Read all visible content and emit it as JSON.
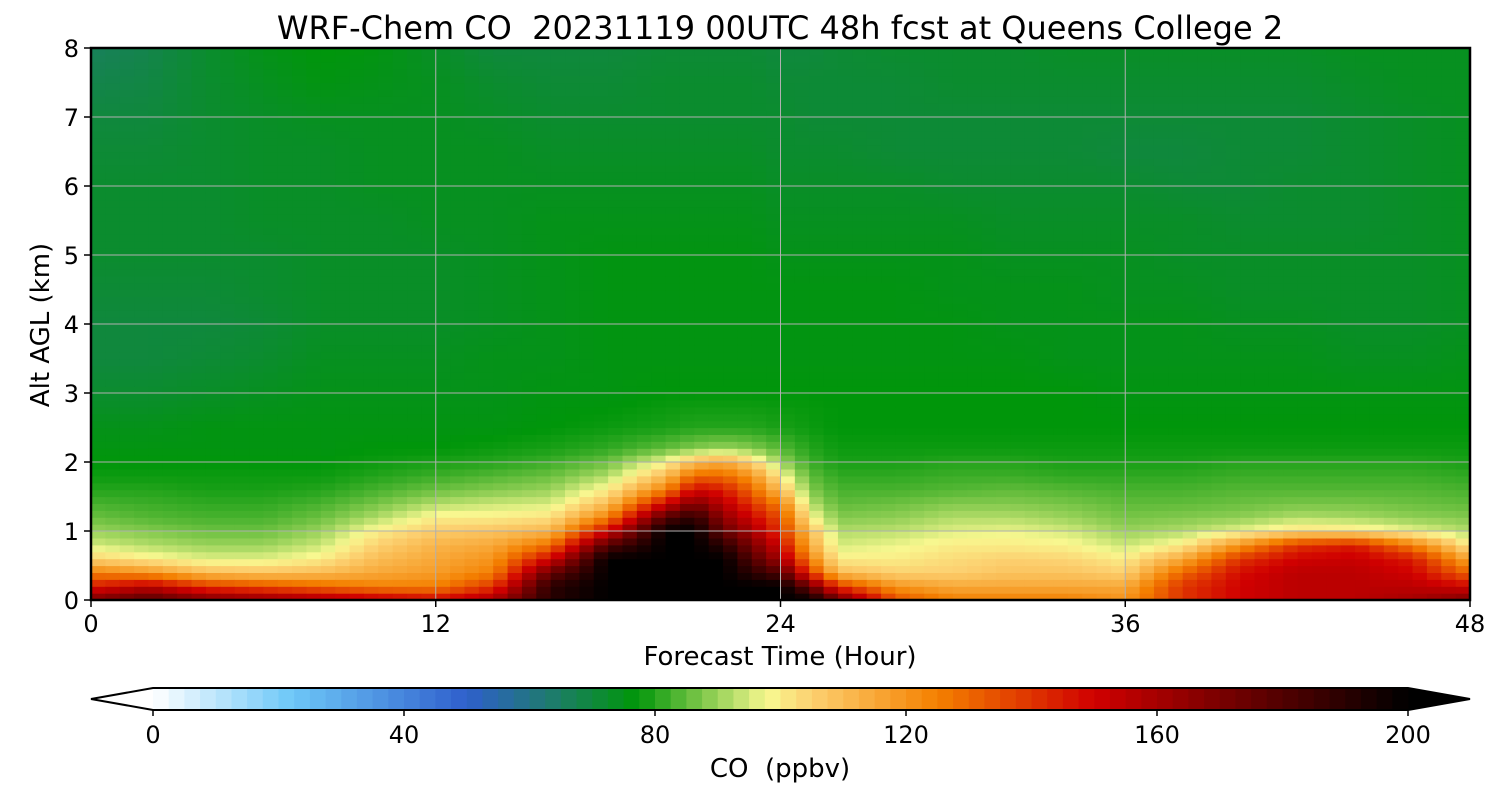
{
  "chart_data": {
    "type": "heatmap",
    "title": "WRF-Chem CO  20231119 00UTC 48h fcst at Queens College 2",
    "xlabel": "Forecast Time (Hour)",
    "ylabel": "Alt AGL (km)",
    "xlim": [
      0,
      48
    ],
    "ylim": [
      0,
      8
    ],
    "x_ticks": [
      0,
      12,
      24,
      36,
      48
    ],
    "y_ticks": [
      0,
      1,
      2,
      3,
      4,
      5,
      6,
      7,
      8
    ],
    "grid": true,
    "colorbar": {
      "label": "CO  (ppbv)",
      "ticks": [
        0,
        40,
        80,
        120,
        160,
        200
      ],
      "range": [
        0,
        200
      ],
      "extend": "both",
      "orientation": "horizontal",
      "placement": "bottom",
      "colors": [
        {
          "value": 0,
          "color": "#ffffff"
        },
        {
          "value": 22,
          "color": "#6ec8f8"
        },
        {
          "value": 50,
          "color": "#2f5fcc"
        },
        {
          "value": 63,
          "color": "#1f7a70"
        },
        {
          "value": 77,
          "color": "#00960a"
        },
        {
          "value": 86,
          "color": "#6cc040"
        },
        {
          "value": 98,
          "color": "#f8f890"
        },
        {
          "value": 105,
          "color": "#fcd070"
        },
        {
          "value": 125,
          "color": "#f48000"
        },
        {
          "value": 150,
          "color": "#d00000"
        },
        {
          "value": 170,
          "color": "#7a0000"
        },
        {
          "value": 200,
          "color": "#000000"
        }
      ]
    },
    "heights_km": [
      0,
      0.2,
      0.4,
      0.6,
      0.8,
      1.0,
      1.2,
      1.4,
      1.6,
      1.8,
      2.0,
      2.2,
      2.5,
      3,
      3.5,
      4,
      4.5,
      5,
      5.5,
      6,
      6.5,
      7,
      7.5,
      8
    ],
    "hours": [
      0,
      2,
      4,
      6,
      8,
      10,
      12,
      14,
      16,
      18,
      20,
      21,
      22,
      23,
      24,
      25,
      26,
      28,
      30,
      32,
      34,
      36,
      38,
      40,
      42,
      44,
      46,
      48
    ],
    "values": [
      [
        170,
        180,
        170,
        165,
        160,
        155,
        150,
        160,
        190,
        200,
        200,
        200,
        200,
        200,
        200,
        200,
        175,
        135,
        125,
        125,
        125,
        120,
        140,
        150,
        155,
        155,
        160,
        170
      ],
      [
        145,
        155,
        140,
        135,
        130,
        125,
        125,
        140,
        190,
        200,
        200,
        200,
        200,
        200,
        200,
        175,
        140,
        120,
        115,
        115,
        115,
        115,
        140,
        150,
        155,
        155,
        155,
        150
      ],
      [
        125,
        120,
        110,
        108,
        110,
        115,
        118,
        125,
        175,
        200,
        200,
        200,
        200,
        190,
        180,
        140,
        110,
        105,
        105,
        108,
        108,
        105,
        130,
        148,
        155,
        155,
        150,
        130
      ],
      [
        105,
        100,
        96,
        96,
        100,
        110,
        115,
        120,
        150,
        200,
        200,
        200,
        200,
        180,
        160,
        125,
        100,
        100,
        103,
        105,
        104,
        100,
        115,
        140,
        150,
        152,
        145,
        115
      ],
      [
        95,
        92,
        90,
        90,
        94,
        105,
        112,
        115,
        128,
        180,
        200,
        200,
        190,
        170,
        150,
        115,
        95,
        97,
        100,
        100,
        99,
        94,
        100,
        120,
        140,
        145,
        125,
        100
      ],
      [
        90,
        88,
        86,
        86,
        90,
        100,
        106,
        108,
        112,
        150,
        200,
        200,
        175,
        160,
        140,
        110,
        92,
        93,
        96,
        97,
        95,
        90,
        92,
        97,
        103,
        102,
        97,
        92
      ],
      [
        86,
        84,
        83,
        83,
        86,
        92,
        100,
        100,
        102,
        125,
        180,
        190,
        165,
        150,
        135,
        100,
        88,
        89,
        92,
        92,
        90,
        87,
        88,
        89,
        92,
        91,
        89,
        88
      ],
      [
        83,
        82,
        81,
        81,
        83,
        87,
        92,
        94,
        95,
        110,
        150,
        170,
        155,
        140,
        125,
        93,
        85,
        86,
        88,
        88,
        87,
        85,
        85,
        86,
        87,
        87,
        86,
        85
      ],
      [
        80,
        80,
        79,
        79,
        80,
        83,
        86,
        88,
        90,
        100,
        125,
        150,
        145,
        130,
        110,
        88,
        83,
        83,
        84,
        85,
        84,
        83,
        83,
        84,
        84,
        84,
        84,
        83
      ],
      [
        78,
        78,
        78,
        78,
        78,
        80,
        82,
        84,
        86,
        92,
        110,
        130,
        130,
        120,
        100,
        85,
        81,
        81,
        82,
        82,
        81,
        81,
        81,
        82,
        82,
        82,
        82,
        81
      ],
      [
        77,
        77,
        77,
        77,
        77,
        78,
        79,
        80,
        82,
        86,
        98,
        110,
        115,
        105,
        90,
        82,
        79,
        79,
        80,
        80,
        79,
        79,
        79,
        80,
        80,
        80,
        80,
        79
      ],
      [
        76,
        76,
        76,
        76,
        76,
        77,
        77,
        78,
        79,
        81,
        85,
        88,
        90,
        88,
        84,
        80,
        78,
        78,
        78,
        78,
        78,
        78,
        78,
        78,
        78,
        78,
        78,
        78
      ],
      [
        75,
        75,
        76,
        76,
        76,
        76,
        76,
        76,
        77,
        78,
        79,
        80,
        80,
        80,
        79,
        78,
        77,
        77,
        77,
        77,
        77,
        77,
        77,
        77,
        77,
        77,
        77,
        77
      ],
      [
        72,
        72,
        73,
        74,
        75,
        75,
        75,
        75,
        76,
        76,
        77,
        77,
        77,
        77,
        77,
        77,
        77,
        77,
        77,
        77,
        77,
        76,
        76,
        76,
        76,
        76,
        76,
        76
      ],
      [
        70,
        70,
        71,
        72,
        74,
        74,
        74,
        75,
        75,
        76,
        76,
        76,
        76,
        76,
        76,
        76,
        76,
        76,
        76,
        76,
        75,
        75,
        75,
        75,
        75,
        74,
        74,
        75
      ],
      [
        70,
        70,
        70,
        71,
        73,
        73,
        73,
        74,
        75,
        76,
        76,
        76,
        76,
        76,
        76,
        76,
        76,
        76,
        76,
        75,
        75,
        75,
        75,
        74,
        74,
        73,
        73,
        74
      ],
      [
        71,
        71,
        71,
        72,
        73,
        73,
        73,
        74,
        75,
        76,
        76,
        76,
        76,
        76,
        76,
        76,
        76,
        76,
        75,
        75,
        75,
        74,
        74,
        73,
        73,
        73,
        73,
        74
      ],
      [
        72,
        72,
        72,
        72,
        73,
        73,
        73,
        74,
        75,
        76,
        76,
        76,
        76,
        76,
        75,
        75,
        75,
        75,
        75,
        74,
        74,
        74,
        73,
        73,
        73,
        73,
        73,
        74
      ],
      [
        72,
        72,
        72,
        73,
        73,
        73,
        74,
        74,
        75,
        75,
        75,
        75,
        75,
        75,
        74,
        74,
        74,
        74,
        74,
        73,
        73,
        73,
        73,
        72,
        72,
        72,
        73,
        74
      ],
      [
        72,
        72,
        72,
        73,
        73,
        74,
        74,
        74,
        74,
        74,
        74,
        74,
        74,
        74,
        73,
        73,
        73,
        73,
        72,
        72,
        72,
        72,
        71,
        71,
        72,
        72,
        73,
        74
      ],
      [
        71,
        71,
        72,
        73,
        73,
        74,
        74,
        74,
        73,
        73,
        73,
        73,
        73,
        73,
        72,
        72,
        72,
        71,
        71,
        71,
        71,
        70,
        70,
        71,
        71,
        72,
        73,
        74
      ],
      [
        70,
        70,
        72,
        73,
        74,
        74,
        74,
        73,
        72,
        72,
        72,
        72,
        72,
        72,
        72,
        71,
        71,
        71,
        71,
        71,
        71,
        71,
        71,
        71,
        71,
        72,
        73,
        74
      ],
      [
        68,
        69,
        72,
        74,
        76,
        75,
        74,
        72,
        71,
        71,
        72,
        72,
        72,
        72,
        71,
        71,
        71,
        71,
        72,
        72,
        72,
        72,
        72,
        72,
        72,
        73,
        74,
        74
      ],
      [
        66,
        68,
        72,
        75,
        77,
        76,
        73,
        70,
        70,
        70,
        71,
        71,
        71,
        71,
        70,
        70,
        71,
        72,
        72,
        72,
        73,
        73,
        73,
        73,
        73,
        74,
        74,
        74
      ]
    ]
  }
}
